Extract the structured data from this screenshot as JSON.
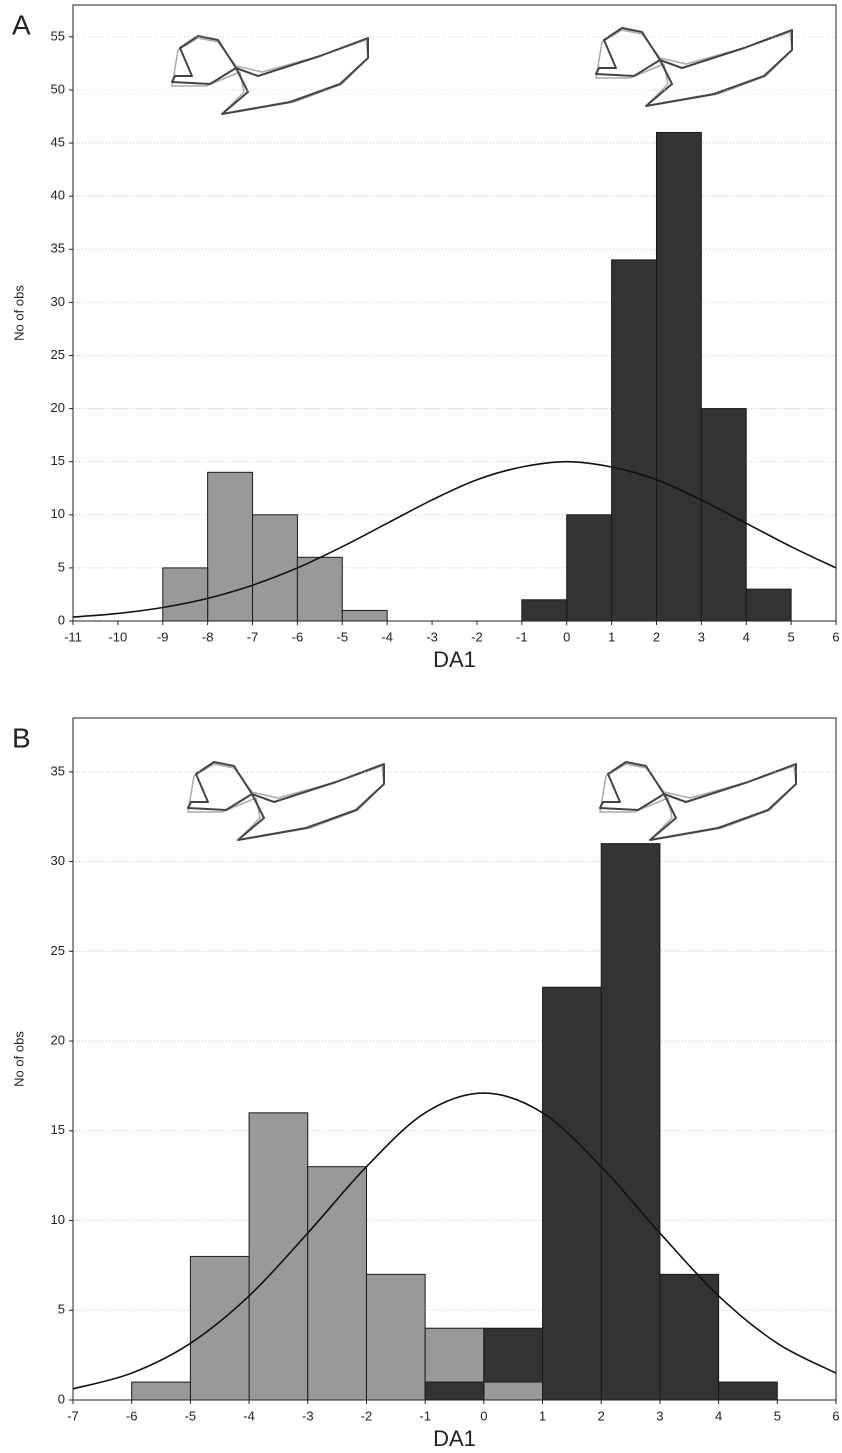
{
  "chart_data": [
    {
      "type": "histogram",
      "panel_label": "A",
      "x_label": "DA1",
      "y_label": "No of obs",
      "xlim": [
        -11,
        6
      ],
      "xticks": [
        -11,
        -10,
        -9,
        -8,
        -7,
        -6,
        -5,
        -4,
        -3,
        -2,
        -1,
        0,
        1,
        2,
        3,
        4,
        5,
        6
      ],
      "ylim": [
        0,
        58
      ],
      "yticks": [
        0,
        5,
        10,
        15,
        20,
        25,
        30,
        35,
        40,
        45,
        50,
        55
      ],
      "grid": true,
      "series": [
        {
          "color": "#999999",
          "bins": [
            -9,
            -8,
            -7,
            -6,
            -5,
            -4
          ],
          "values": [
            5,
            14,
            10,
            6,
            1
          ]
        },
        {
          "color": "#333333",
          "bins": [
            -1,
            0,
            1,
            2,
            3,
            4,
            5
          ],
          "values": [
            2,
            10,
            34,
            46,
            20,
            3
          ]
        }
      ],
      "curve": {
        "color": "#111111",
        "x": [
          -11,
          -10,
          -9,
          -8,
          -7,
          -6,
          -5,
          -4,
          -3,
          -2,
          -1,
          0,
          1,
          2,
          3,
          4,
          5,
          6
        ],
        "values": [
          0.37,
          0.71,
          1.27,
          2.13,
          3.37,
          5.0,
          7.0,
          9.2,
          11.4,
          13.3,
          14.5,
          15,
          14.5,
          13.3,
          11.4,
          9.2,
          7.0,
          5.0
        ]
      }
    },
    {
      "type": "histogram",
      "panel_label": "B",
      "x_label": "DA1",
      "y_label": "No of obs",
      "xlim": [
        -7,
        6
      ],
      "xticks": [
        -7,
        -6,
        -5,
        -4,
        -3,
        -2,
        -1,
        0,
        1,
        2,
        3,
        4,
        5,
        6
      ],
      "ylim": [
        0,
        38
      ],
      "yticks": [
        0,
        5,
        10,
        15,
        20,
        25,
        30,
        35
      ],
      "grid": true,
      "series": [
        {
          "color": "#999999",
          "bins": [
            -6,
            -5,
            -4,
            -3,
            -2,
            -1,
            0,
            1
          ],
          "values": [
            1,
            8,
            16,
            13,
            7,
            4,
            1
          ]
        },
        {
          "color": "#333333",
          "bins": [
            -1,
            0,
            1,
            2,
            3,
            4,
            5
          ],
          "values": [
            1,
            4,
            23,
            31,
            7,
            1
          ]
        }
      ],
      "curve": {
        "color": "#111111",
        "x": [
          -7,
          -6,
          -5,
          -4,
          -3,
          -2,
          -1,
          0,
          1,
          2,
          3,
          4,
          5,
          6
        ],
        "values": [
          0.62,
          1.5,
          3.16,
          5.8,
          9.3,
          13.0,
          16.0,
          17.1,
          16.0,
          13.0,
          9.3,
          5.8,
          3.16,
          1.5
        ]
      }
    }
  ]
}
